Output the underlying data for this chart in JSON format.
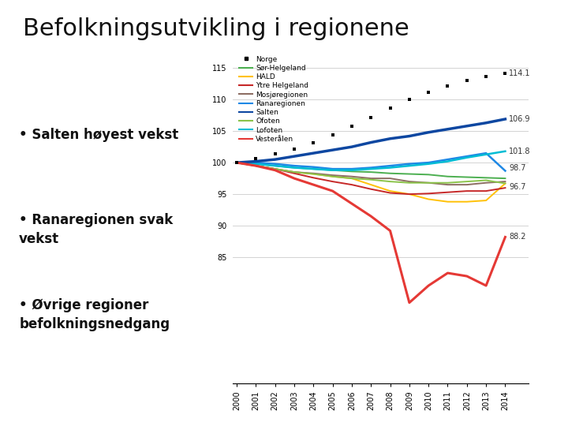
{
  "title": "Befolkningsutvikling i regionene",
  "bullets": [
    "Salten høyest vekst",
    "Ranaregionen svak\nvekst",
    "Øvrige regioner\nbefolkningsnedgang"
  ],
  "years": [
    2000,
    2001,
    2002,
    2003,
    2004,
    2005,
    2006,
    2007,
    2008,
    2009,
    2010,
    2011,
    2012,
    2013,
    2014
  ],
  "series": {
    "Norge": {
      "color": "#000000",
      "zorder": 10,
      "data": [
        100,
        100.7,
        101.4,
        102.2,
        103.2,
        104.4,
        105.8,
        107.2,
        108.7,
        110.0,
        111.2,
        112.2,
        113.0,
        113.7,
        114.1
      ]
    },
    "Sør-Helgeland": {
      "color": "#4CAF50",
      "zorder": 5,
      "data": [
        100,
        99.8,
        99.5,
        99.2,
        99.0,
        98.8,
        98.6,
        98.5,
        98.3,
        98.2,
        98.1,
        97.8,
        97.7,
        97.6,
        97.5
      ]
    },
    "HALD": {
      "color": "#FFC107",
      "zorder": 5,
      "data": [
        100,
        99.5,
        99.0,
        98.5,
        98.2,
        97.8,
        97.5,
        96.5,
        95.5,
        95.0,
        94.2,
        93.8,
        93.8,
        94.0,
        96.7
      ]
    },
    "Ytre Helgeland": {
      "color": "#C62828",
      "zorder": 5,
      "data": [
        100,
        99.5,
        99.0,
        98.3,
        97.6,
        97.0,
        96.5,
        95.8,
        95.2,
        95.0,
        95.1,
        95.3,
        95.5,
        95.5,
        96.0
      ]
    },
    "Mosjøregionen": {
      "color": "#8D6E63",
      "zorder": 5,
      "data": [
        100,
        99.5,
        99.0,
        98.5,
        98.3,
        98.0,
        97.8,
        97.5,
        97.5,
        97.0,
        96.8,
        96.5,
        96.5,
        96.8,
        97.0
      ]
    },
    "Ranaregionen": {
      "color": "#1E88E5",
      "zorder": 6,
      "data": [
        100,
        100.0,
        99.8,
        99.5,
        99.3,
        99.0,
        99.0,
        99.2,
        99.5,
        99.8,
        100.0,
        100.5,
        101.0,
        101.5,
        98.7
      ]
    },
    "Salten": {
      "color": "#0D47A1",
      "zorder": 7,
      "data": [
        100,
        100.2,
        100.5,
        101.0,
        101.5,
        102.0,
        102.5,
        103.2,
        103.8,
        104.2,
        104.8,
        105.3,
        105.8,
        106.3,
        106.9
      ]
    },
    "Ofoten": {
      "color": "#8BC34A",
      "zorder": 5,
      "data": [
        100,
        99.5,
        99.0,
        98.5,
        98.2,
        97.8,
        97.5,
        97.3,
        97.0,
        96.8,
        96.8,
        96.8,
        97.0,
        97.2,
        96.7
      ]
    },
    "Lofoten": {
      "color": "#00BCD4",
      "zorder": 6,
      "data": [
        100,
        99.8,
        99.5,
        99.2,
        99.0,
        98.8,
        98.8,
        99.0,
        99.2,
        99.5,
        99.8,
        100.2,
        100.8,
        101.3,
        101.8
      ]
    },
    "Vesterålen": {
      "color": "#E53935",
      "zorder": 8,
      "data": [
        100,
        99.5,
        98.8,
        97.5,
        96.5,
        95.5,
        93.5,
        91.5,
        89.2,
        77.8,
        80.5,
        82.5,
        82.0,
        80.5,
        88.2
      ]
    }
  },
  "end_labels": {
    "Norge": {
      "text": "114.1",
      "yoffset": 0.0
    },
    "Salten": {
      "text": "106.9",
      "yoffset": 0.0
    },
    "Lofoten": {
      "text": "101.8",
      "yoffset": 0.0
    },
    "Ranaregionen": {
      "text": "98.7",
      "yoffset": 0.5
    },
    "Ofoten": {
      "text": "96.7",
      "yoffset": -0.5
    },
    "Vesterålen": {
      "text": "88.2",
      "yoffset": 0.0
    }
  },
  "ylim": [
    65,
    117
  ],
  "yticks_shown": [
    85,
    90,
    95,
    100,
    105,
    110,
    115
  ],
  "yticks_minor": [
    80
  ],
  "background_color": "#ffffff",
  "title_fontsize": 22,
  "bullet_fontsize": 12,
  "axis_fontsize": 7
}
